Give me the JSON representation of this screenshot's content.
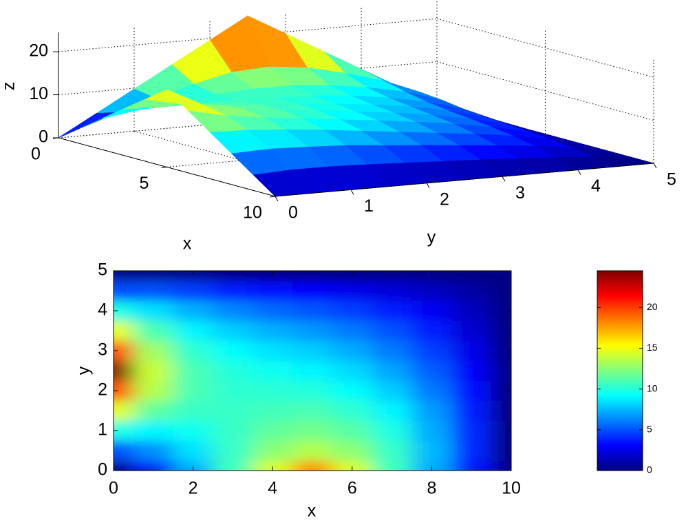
{
  "chart_data": [
    {
      "type": "surface3d",
      "xlabel": "x",
      "ylabel": "y",
      "zlabel": "z",
      "x": [
        0,
        1,
        2,
        3,
        4,
        5,
        6,
        7,
        8,
        9,
        10
      ],
      "y": [
        0,
        0.5,
        1,
        1.5,
        2,
        2.5,
        3,
        3.5,
        4,
        4.5,
        5
      ],
      "z": [
        [
          0,
          3.6,
          7.2,
          10.8,
          14.4,
          18,
          14.4,
          10.8,
          7.2,
          3.6,
          0
        ],
        [
          4.9,
          6.5,
          8.5,
          10.5,
          12.5,
          13.5,
          12.5,
          10.5,
          7.5,
          4,
          0
        ],
        [
          9.8,
          9,
          9.5,
          10.5,
          11.5,
          12,
          11.3,
          9.8,
          7.2,
          4,
          0
        ],
        [
          14.7,
          11.5,
          10.5,
          10.5,
          10.8,
          11,
          10.3,
          9,
          6.8,
          3.7,
          0
        ],
        [
          19.6,
          13.5,
          11,
          10.3,
          10.2,
          10,
          9.3,
          8,
          6,
          3.3,
          0
        ],
        [
          24.5,
          14,
          11,
          10,
          9.5,
          9,
          8.3,
          7,
          5.3,
          2.9,
          0
        ],
        [
          19.6,
          13,
          10.3,
          9.2,
          8.5,
          8,
          7.2,
          6,
          4.5,
          2.5,
          0
        ],
        [
          14.7,
          11,
          9,
          8,
          7.3,
          6.7,
          6,
          5,
          3.7,
          2,
          0
        ],
        [
          9.8,
          8.5,
          7.3,
          6.3,
          5.6,
          5.1,
          4.5,
          3.8,
          2.8,
          1.5,
          0
        ],
        [
          4.9,
          5,
          4.5,
          3.8,
          3.3,
          3,
          2.6,
          2.2,
          1.6,
          0.9,
          0
        ],
        [
          0,
          0,
          0,
          0,
          0,
          0,
          0,
          0,
          0,
          0,
          0
        ]
      ],
      "xlim": [
        0,
        10
      ],
      "ylim": [
        0,
        5
      ],
      "zlim": [
        0,
        24.5
      ],
      "xticks": [
        0,
        5,
        10
      ],
      "yticks": [
        0,
        1,
        2,
        3,
        4,
        5
      ],
      "zticks": [
        0,
        10,
        20
      ],
      "grid": true,
      "colormap": "jet"
    },
    {
      "type": "heatmap",
      "xlabel": "x",
      "ylabel": "y",
      "x": [
        0,
        1,
        2,
        3,
        4,
        5,
        6,
        7,
        8,
        9,
        10
      ],
      "y": [
        0,
        0.5,
        1,
        1.5,
        2,
        2.5,
        3,
        3.5,
        4,
        4.5,
        5
      ],
      "z": [
        [
          0,
          3.6,
          7.2,
          10.8,
          14.4,
          18,
          14.4,
          10.8,
          7.2,
          3.6,
          0
        ],
        [
          4.9,
          6.5,
          8.5,
          10.5,
          12.5,
          13.5,
          12.5,
          10.5,
          7.5,
          4,
          0
        ],
        [
          9.8,
          9,
          9.5,
          10.5,
          11.5,
          12,
          11.3,
          9.8,
          7.2,
          4,
          0
        ],
        [
          14.7,
          11.5,
          10.5,
          10.5,
          10.8,
          11,
          10.3,
          9,
          6.8,
          3.7,
          0
        ],
        [
          19.6,
          13.5,
          11,
          10.3,
          10.2,
          10,
          9.3,
          8,
          6,
          3.3,
          0
        ],
        [
          24.5,
          14,
          11,
          10,
          9.5,
          9,
          8.3,
          7,
          5.3,
          2.9,
          0
        ],
        [
          19.6,
          13,
          10.3,
          9.2,
          8.5,
          8,
          7.2,
          6,
          4.5,
          2.5,
          0
        ],
        [
          14.7,
          11,
          9,
          8,
          7.3,
          6.7,
          6,
          5,
          3.7,
          2,
          0
        ],
        [
          9.8,
          8.5,
          7.3,
          6.3,
          5.6,
          5.1,
          4.5,
          3.8,
          2.8,
          1.5,
          0
        ],
        [
          4.9,
          5,
          4.5,
          3.8,
          3.3,
          3,
          2.6,
          2.2,
          1.6,
          0.9,
          0
        ],
        [
          0,
          0,
          0,
          0,
          0,
          0,
          0,
          0,
          0,
          0,
          0
        ]
      ],
      "xlim": [
        0,
        10
      ],
      "ylim": [
        0,
        5
      ],
      "xticks": [
        0,
        2,
        4,
        6,
        8,
        10
      ],
      "yticks": [
        0,
        1,
        2,
        3,
        4,
        5
      ],
      "colormap": "jet",
      "colorbar": {
        "lim": [
          0,
          24.5
        ],
        "ticks": [
          0,
          5,
          10,
          15,
          20
        ]
      }
    }
  ]
}
